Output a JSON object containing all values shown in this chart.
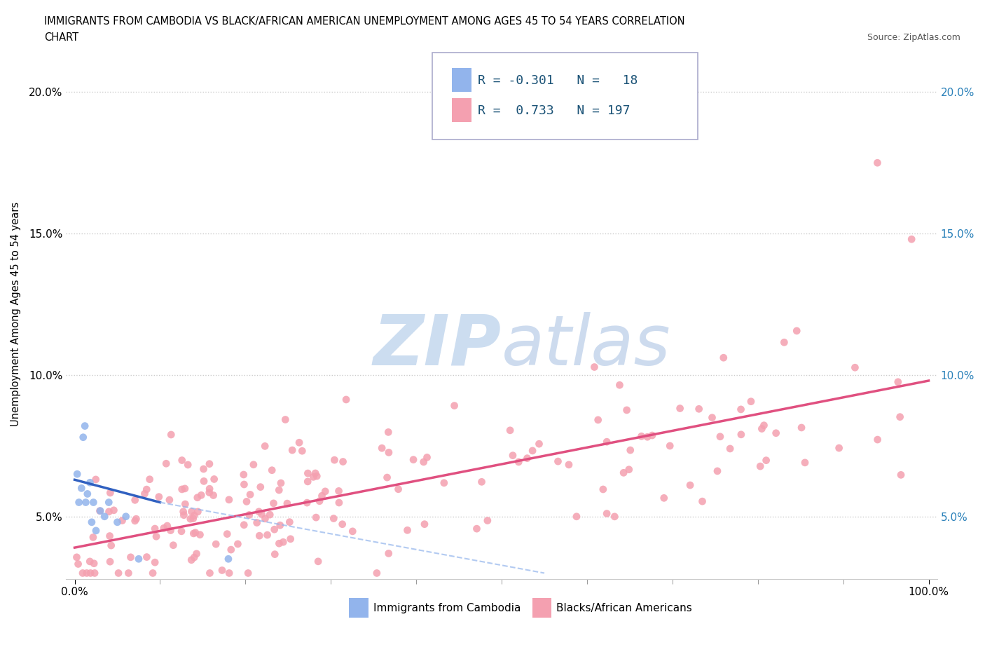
{
  "title_line1": "IMMIGRANTS FROM CAMBODIA VS BLACK/AFRICAN AMERICAN UNEMPLOYMENT AMONG AGES 45 TO 54 YEARS CORRELATION",
  "title_line2": "CHART",
  "source_text": "Source: ZipAtlas.com",
  "ylabel": "Unemployment Among Ages 45 to 54 years",
  "xlim": [
    -1,
    101
  ],
  "ylim": [
    2.8,
    21.5
  ],
  "ytick_positions": [
    5.0,
    10.0,
    15.0,
    20.0
  ],
  "grid_color": "#cccccc",
  "background_color": "#ffffff",
  "cambodia_color": "#92b4ec",
  "cambodia_line_color": "#3060c0",
  "black_color": "#f4a0b0",
  "black_line_color": "#e05080",
  "cambodia_R": -0.301,
  "cambodia_N": 18,
  "black_R": 0.733,
  "black_N": 197,
  "legend_text_color": "#1a5276",
  "watermark_color": "#dce9f5",
  "cam_line_start_y": 6.3,
  "cam_line_end_y": 3.2,
  "cam_line_x_end": 55,
  "black_line_start_y": 3.9,
  "black_line_end_y": 9.8
}
